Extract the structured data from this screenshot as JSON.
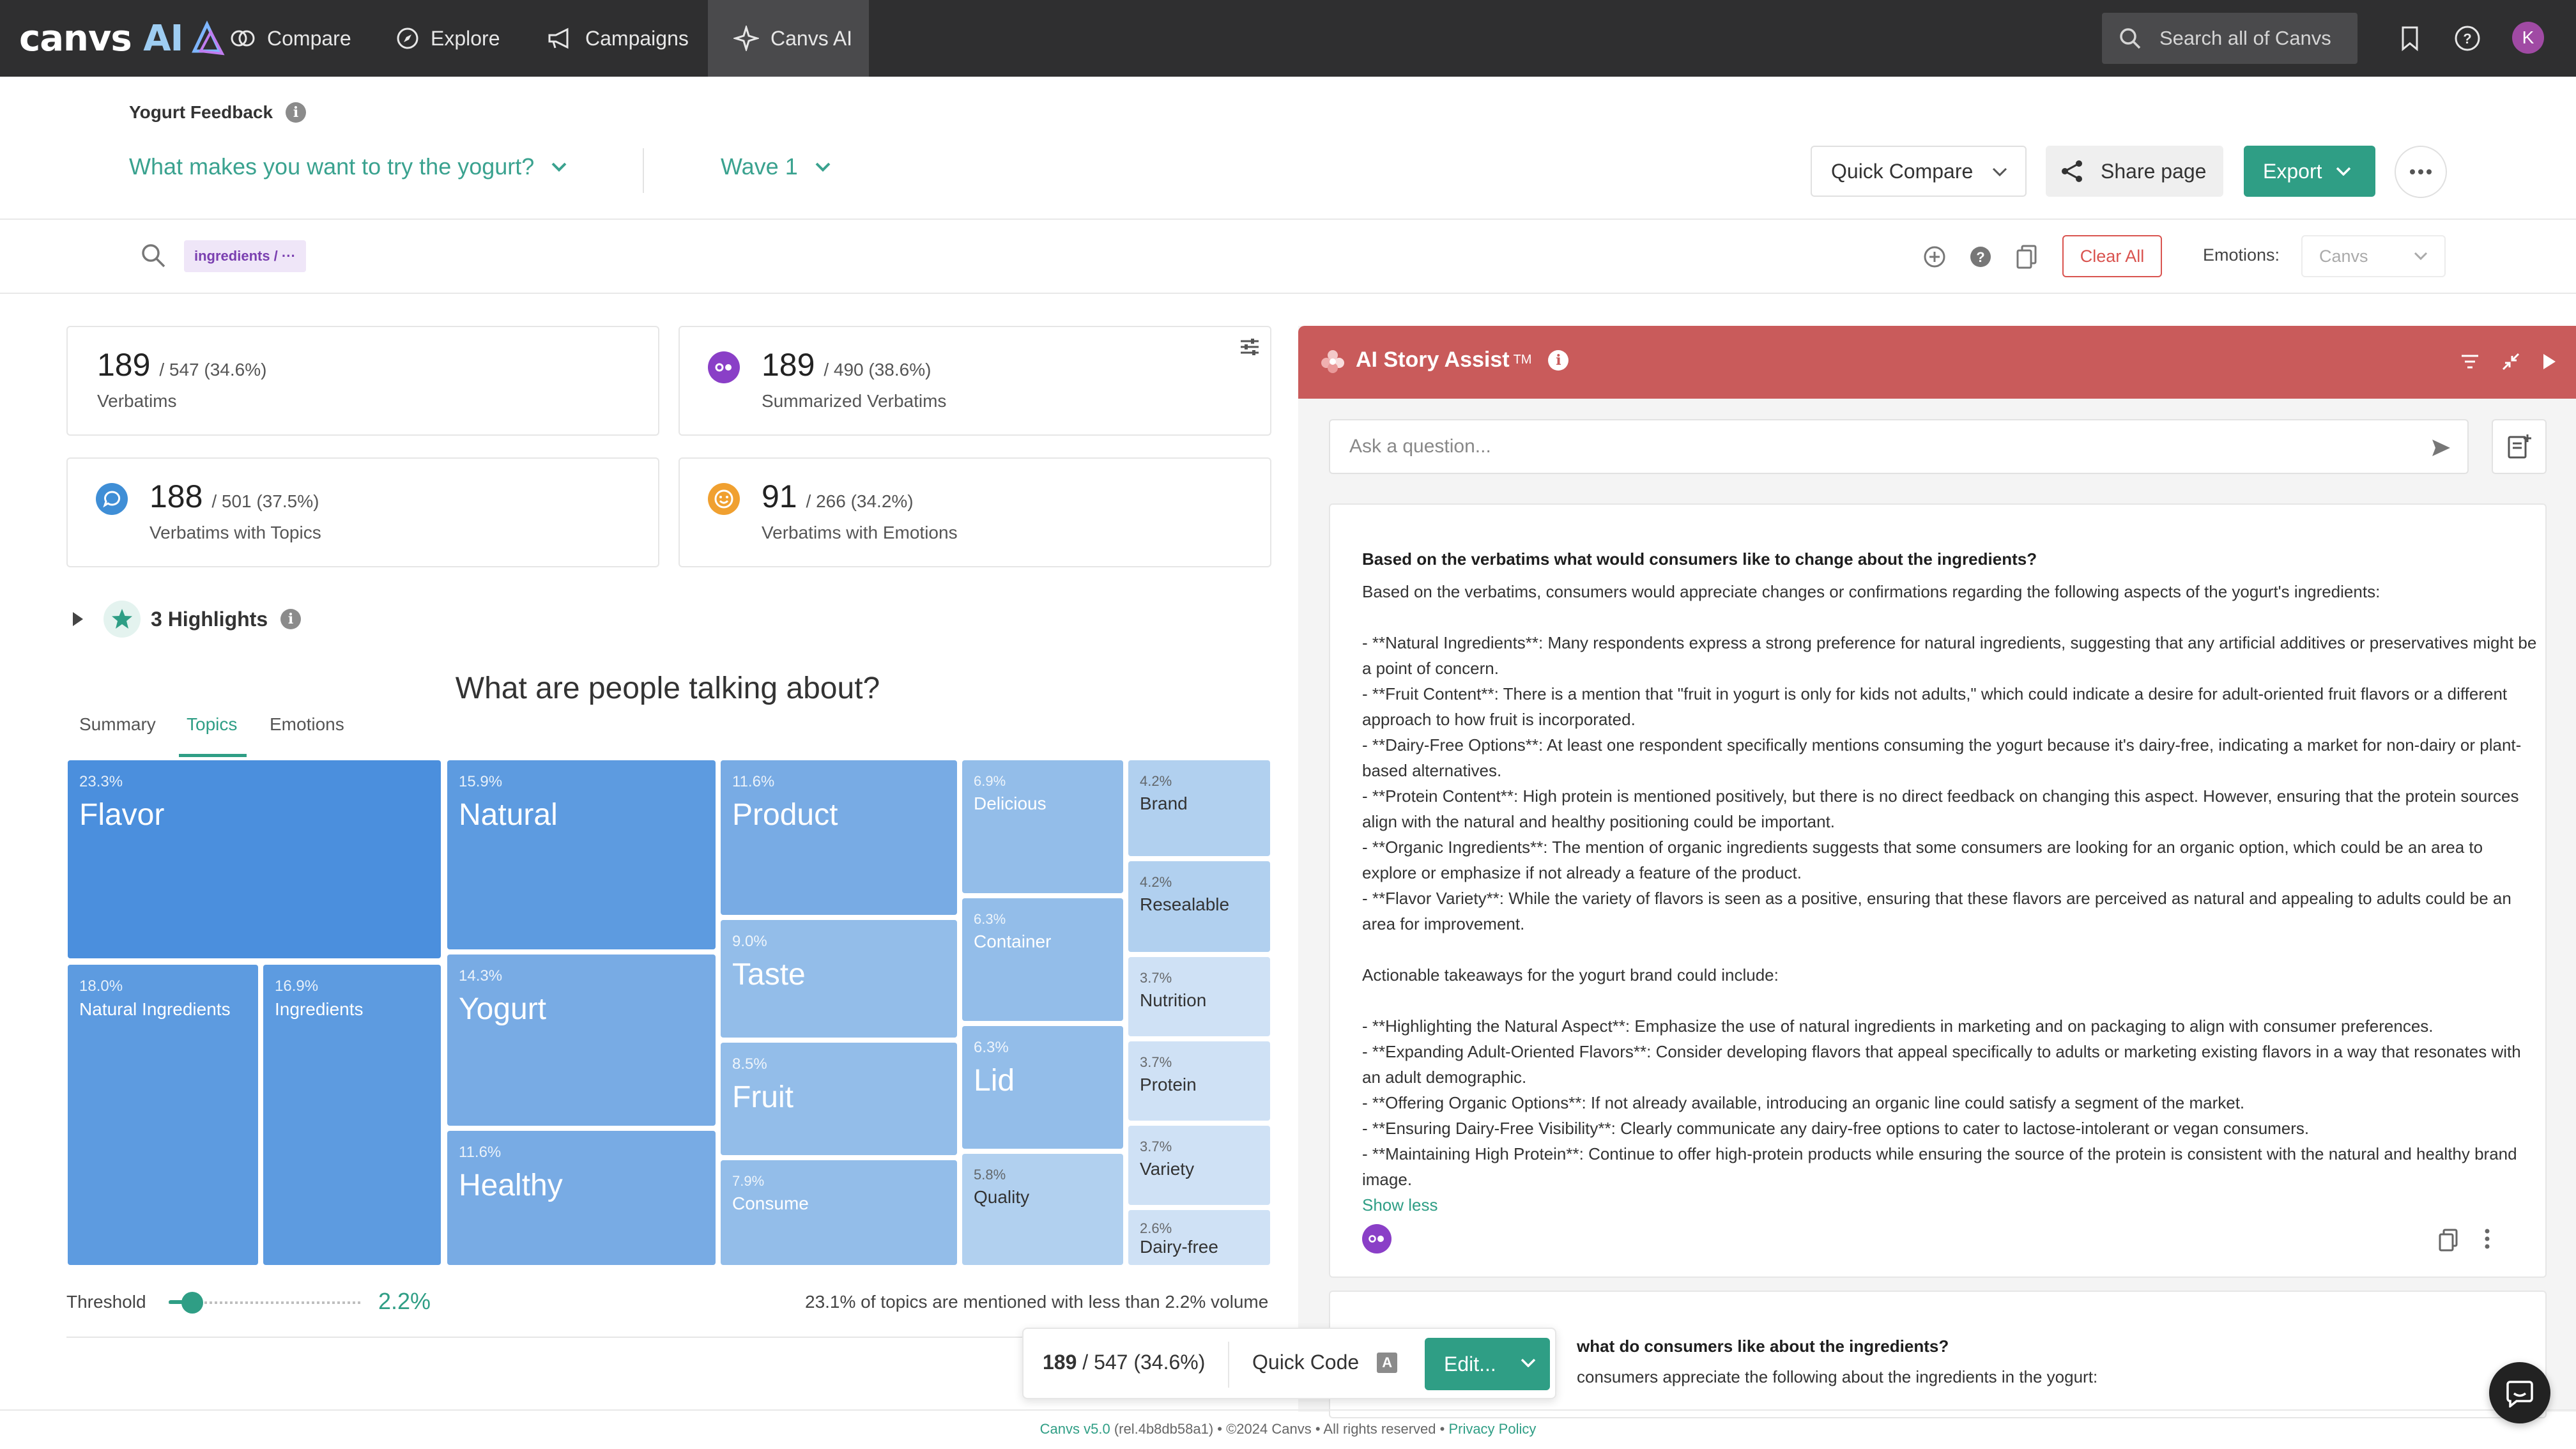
{
  "app": {
    "logo_text": "canvs",
    "logo_ai": "AI"
  },
  "nav": {
    "items": [
      {
        "label": "Compare",
        "icon": "compare-icon"
      },
      {
        "label": "Explore",
        "icon": "compass-icon"
      },
      {
        "label": "Campaigns",
        "icon": "megaphone-icon"
      },
      {
        "label": "Canvs AI",
        "icon": "ai-sparkle-icon",
        "active": true
      }
    ],
    "search_placeholder": "Search all of Canvs",
    "avatar_initial": "K"
  },
  "header": {
    "project_title": "Yogurt Feedback",
    "question": "What makes you want to try the yogurt?",
    "wave": "Wave 1",
    "quick_compare": "Quick Compare",
    "share": "Share page",
    "export": "Export"
  },
  "filters": {
    "chip": "ingredients / ···",
    "clear_all": "Clear All",
    "emotions_label": "Emotions:",
    "emotions_value": "Canvs"
  },
  "stats": [
    {
      "count": "189",
      "sub": "/ 547 (34.6%)",
      "label": "Verbatims"
    },
    {
      "count": "189",
      "sub": "/ 490 (38.6%)",
      "label": "Summarized Verbatims"
    },
    {
      "count": "188",
      "sub": "/ 501 (37.5%)",
      "label": "Verbatims with Topics"
    },
    {
      "count": "91",
      "sub": "/ 266 (34.2%)",
      "label": "Verbatims with Emotions"
    }
  ],
  "highlights": {
    "label": "3 Highlights"
  },
  "topics": {
    "title": "What are people talking about?",
    "tabs": [
      "Summary",
      "Topics",
      "Emotions"
    ],
    "active_tab": "Topics",
    "tiles": [
      {
        "pct": "23.3%",
        "name": "Flavor"
      },
      {
        "pct": "18.0%",
        "name": "Natural Ingredients"
      },
      {
        "pct": "16.9%",
        "name": "Ingredients"
      },
      {
        "pct": "15.9%",
        "name": "Natural"
      },
      {
        "pct": "14.3%",
        "name": "Yogurt"
      },
      {
        "pct": "11.6%",
        "name": "Healthy"
      },
      {
        "pct": "11.6%",
        "name": "Product"
      },
      {
        "pct": "9.0%",
        "name": "Taste"
      },
      {
        "pct": "8.5%",
        "name": "Fruit"
      },
      {
        "pct": "7.9%",
        "name": "Consume"
      },
      {
        "pct": "6.9%",
        "name": "Delicious"
      },
      {
        "pct": "6.3%",
        "name": "Container"
      },
      {
        "pct": "6.3%",
        "name": "Lid"
      },
      {
        "pct": "5.8%",
        "name": "Quality"
      },
      {
        "pct": "4.2%",
        "name": "Brand"
      },
      {
        "pct": "4.2%",
        "name": "Resealable"
      },
      {
        "pct": "3.7%",
        "name": "Nutrition"
      },
      {
        "pct": "3.7%",
        "name": "Protein"
      },
      {
        "pct": "3.7%",
        "name": "Variety"
      },
      {
        "pct": "2.6%",
        "name": "Dairy-free"
      }
    ],
    "threshold_label": "Threshold",
    "threshold_value": "2.2%",
    "threshold_level": 0.1,
    "threshold_note": "23.1% of topics are mentioned with less than 2.2% volume"
  },
  "floatbar": {
    "count_bold": "189",
    "count_rest": "/ 547 (34.6%)",
    "quick_code": "Quick Code",
    "kbd": "A",
    "edit": "Edit..."
  },
  "footer": {
    "version": "Canvs v5.0",
    "rest": "(rel.4b8db58a1) • ©2024 Canvs • All rights reserved •",
    "privacy": "Privacy Policy"
  },
  "ai": {
    "title": "AI Story Assist",
    "tm": "TM",
    "ask_placeholder": "Ask a question...",
    "q1": "Based on the verbatims what would consumers like to change about the ingredients?",
    "intro": "Based on the verbatims, consumers would appreciate changes or confirmations regarding the following aspects of the yogurt's ingredients:",
    "bullets1": [
      "- **Natural Ingredients**: Many respondents express a strong preference for natural ingredients, suggesting that any artificial additives or preservatives might be a point of concern.",
      "- **Fruit Content**: There is a mention that \"fruit in yogurt is only for kids not adults,\" which could indicate a desire for adult-oriented fruit flavors or a different approach to how fruit is incorporated.",
      "- **Dairy-Free Options**: At least one respondent specifically mentions consuming the yogurt because it's dairy-free, indicating a market for non-dairy or plant-based alternatives.",
      "- **Protein Content**: High protein is mentioned positively, but there is no direct feedback on changing this aspect. However, ensuring that the protein sources align with the natural and healthy positioning could be important.",
      "- **Organic Ingredients**: The mention of organic ingredients suggests that some consumers are looking for an organic option, which could be an area to explore or emphasize if not already a feature of the product.",
      "- **Flavor Variety**: While the variety of flavors is seen as a positive, ensuring that these flavors are perceived as natural and appealing to adults could be an area for improvement."
    ],
    "takeaways": "Actionable takeaways for the yogurt brand could include:",
    "bullets2": [
      "- **Highlighting the Natural Aspect**: Emphasize the use of natural ingredients in marketing and on packaging to align with consumer preferences.",
      "- **Expanding Adult-Oriented Flavors**: Consider developing flavors that appeal specifically to adults or marketing existing flavors in a way that resonates with an adult demographic.",
      "- **Offering Organic Options**: If not already available, introducing an organic line could satisfy a segment of the market.",
      "- **Ensuring Dairy-Free Visibility**: Clearly communicate any dairy-free options to cater to lactose-intolerant or vegan consumers.",
      "- **Maintaining High Protein**: Continue to offer high-protein products while ensuring the source of the protein is consistent with the natural and healthy brand image."
    ],
    "show_less": "Show less",
    "q2_partial": "what do consumers like about the ingredients?",
    "a2_partial": "consumers appreciate the following about the ingredients in the yogurt:"
  },
  "colors": {
    "accent": "#2f9e85",
    "ai_header": "#c95b5b",
    "nav_bg": "#2f2f30",
    "clear_red": "#d9534f"
  }
}
